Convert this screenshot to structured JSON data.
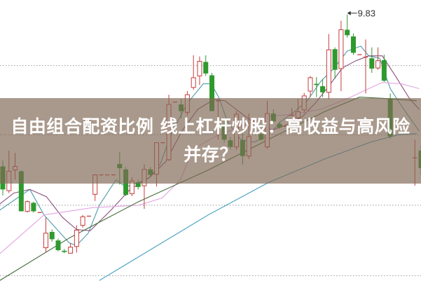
{
  "title": {
    "line1": "自由组合配资比例 线上杠杆炒股：高收益与高风险",
    "line2": "并存？"
  },
  "chart_data": {
    "type": "candlestick",
    "annotations": [
      {
        "text": "9.83",
        "day": 56,
        "price": 9.83
      }
    ],
    "colors": {
      "up": "#c83c3c",
      "down": "#2e9a2e",
      "band": "#806856",
      "grid": "#999999"
    },
    "grid": "dotted horizontal",
    "grid_prices": [
      9.41,
      8.84,
      8.26,
      7.68
    ],
    "ylim": [
      7.64,
      9.95
    ],
    "candles_ohlc": [
      [
        0,
        8.58,
        8.63,
        8.34,
        8.39
      ],
      [
        1,
        8.38,
        8.71,
        8.36,
        8.54
      ],
      [
        2,
        8.55,
        8.69,
        8.47,
        8.58
      ],
      [
        3,
        8.54,
        8.55,
        8.21,
        8.21
      ],
      [
        4,
        8.21,
        8.3,
        8.2,
        8.29
      ],
      [
        5,
        8.28,
        8.29,
        8.2,
        8.21
      ],
      [
        6,
        8.2,
        8.2,
        8.2,
        8.2
      ],
      [
        7,
        7.91,
        8.16,
        7.87,
        8.03
      ],
      [
        8,
        8.04,
        8.06,
        7.96,
        7.98
      ],
      [
        9,
        7.97,
        7.985,
        7.88,
        7.89
      ],
      [
        10,
        7.885,
        7.9,
        7.865,
        7.875
      ],
      [
        11,
        7.865,
        7.95,
        7.86,
        7.915
      ],
      [
        12,
        7.92,
        8.095,
        7.87,
        8.055
      ],
      [
        13,
        8.095,
        8.18,
        8.075,
        8.165
      ],
      [
        14,
        8.17,
        8.17,
        8.17,
        8.17
      ],
      [
        15,
        8.35,
        8.515,
        8.295,
        8.51
      ],
      [
        16,
        8.51,
        8.51,
        8.51,
        8.51
      ],
      [
        17,
        8.51,
        8.51,
        8.51,
        8.51
      ],
      [
        18,
        8.51,
        8.51,
        8.51,
        8.51
      ],
      [
        19,
        8.6,
        8.7,
        8.43,
        8.565
      ],
      [
        20,
        8.555,
        8.575,
        8.335,
        8.345
      ],
      [
        21,
        8.355,
        8.49,
        8.335,
        8.46
      ],
      [
        22,
        8.45,
        8.47,
        8.39,
        8.41
      ],
      [
        23,
        8.42,
        8.6,
        8.23,
        8.555
      ],
      [
        24,
        8.555,
        8.575,
        8.49,
        8.51
      ],
      [
        25,
        8.515,
        8.775,
        8.415,
        8.775
      ],
      [
        26,
        8.775,
        8.775,
        8.775,
        8.775
      ],
      [
        27,
        8.635,
        9.17,
        8.625,
        9.09
      ],
      [
        28,
        9.11,
        9.11,
        9.11,
        9.11
      ],
      [
        29,
        9.09,
        9.135,
        8.975,
        9.035
      ],
      [
        30,
        9.025,
        9.2,
        9.0,
        9.17
      ],
      [
        31,
        9.23,
        9.495,
        9.21,
        9.31
      ],
      [
        32,
        9.325,
        9.485,
        9.25,
        9.445
      ],
      [
        33,
        9.44,
        9.495,
        9.325,
        9.345
      ],
      [
        34,
        9.33,
        9.35,
        9.035,
        9.035
      ],
      [
        35,
        9.12,
        9.14,
        8.8,
        9.12
      ],
      [
        36,
        8.91,
        8.95,
        8.775,
        8.8
      ],
      [
        37,
        8.795,
        8.825,
        8.72,
        8.74
      ],
      [
        38,
        8.74,
        9.035,
        8.715,
        9.01
      ],
      [
        39,
        8.795,
        8.85,
        8.595,
        8.665
      ],
      [
        40,
        8.665,
        9.015,
        8.64,
        8.825
      ],
      [
        41,
        8.95,
        8.95,
        8.95,
        8.95
      ],
      [
        42,
        8.845,
        8.875,
        8.79,
        8.8
      ],
      [
        43,
        8.74,
        9.12,
        8.725,
        9.015
      ],
      [
        44,
        9.015,
        9.05,
        8.935,
        8.95
      ],
      [
        45,
        8.93,
        8.95,
        8.89,
        8.9
      ],
      [
        46,
        8.91,
        8.91,
        8.91,
        8.91
      ],
      [
        47,
        9.0,
        9.06,
        9.0,
        9.0
      ],
      [
        48,
        8.98,
        9.135,
        8.96,
        9.03
      ],
      [
        49,
        9.045,
        9.185,
        9.025,
        9.16
      ],
      [
        50,
        9.2,
        9.325,
        9.15,
        9.31
      ],
      [
        51,
        9.26,
        9.315,
        9.15,
        9.25
      ],
      [
        52,
        9.24,
        9.3,
        9.15,
        9.19
      ],
      [
        53,
        9.19,
        9.67,
        9.135,
        9.54
      ],
      [
        54,
        9.545,
        9.56,
        9.3,
        9.375
      ],
      [
        55,
        9.385,
        9.78,
        9.2,
        9.705
      ],
      [
        56,
        9.705,
        9.83,
        9.64,
        9.66
      ],
      [
        57,
        9.65,
        9.675,
        9.5,
        9.515
      ],
      [
        58,
        9.5,
        9.5,
        9.5,
        9.5
      ],
      [
        59,
        9.48,
        9.625,
        9.18,
        9.48
      ],
      [
        60,
        9.47,
        9.56,
        9.35,
        9.385
      ],
      [
        61,
        9.39,
        9.56,
        9.375,
        9.45
      ],
      [
        62,
        9.455,
        9.5,
        9.275,
        9.285
      ],
      [
        63,
        9.14,
        9.18,
        8.81,
        8.825
      ],
      [
        67,
        8.65,
        8.8,
        8.42,
        8.65
      ],
      [
        68,
        8.71,
        8.75,
        8.51,
        8.565
      ]
    ],
    "moving_averages": [
      {
        "color": "#4f9aa8",
        "points": [
          [
            -0.5,
            8.22
          ],
          [
            4.4,
            8.39
          ],
          [
            6.7,
            8.18
          ],
          [
            10.8,
            7.95
          ],
          [
            12,
            7.93
          ],
          [
            13.9,
            8.03
          ],
          [
            15.7,
            8.26
          ],
          [
            18.4,
            8.47
          ],
          [
            20,
            8.41
          ],
          [
            22.2,
            8.45
          ],
          [
            23.9,
            8.49
          ],
          [
            25.6,
            8.6
          ],
          [
            27.4,
            8.85
          ],
          [
            30,
            9.1
          ],
          [
            32.6,
            9.26
          ],
          [
            33.9,
            9.26
          ],
          [
            35.2,
            9.14
          ],
          [
            36.5,
            8.95
          ],
          [
            38.7,
            8.8
          ],
          [
            40.9,
            8.78
          ],
          [
            43,
            8.83
          ],
          [
            45.2,
            8.95
          ],
          [
            47.4,
            9.03
          ],
          [
            49.5,
            9.12
          ],
          [
            51.7,
            9.28
          ],
          [
            53.9,
            9.39
          ],
          [
            56,
            9.53
          ],
          [
            58.2,
            9.57
          ],
          [
            59.5,
            9.49
          ],
          [
            61.3,
            9.47
          ],
          [
            63,
            9.22
          ],
          [
            64.8,
            9.08
          ],
          [
            67.7,
            8.87
          ]
        ]
      },
      {
        "color": "#8a4f7e",
        "points": [
          [
            -0.5,
            8.27
          ],
          [
            1.8,
            8.36
          ],
          [
            4.4,
            8.39
          ],
          [
            7.1,
            8.33
          ],
          [
            9.7,
            8.16
          ],
          [
            12,
            8.06
          ],
          [
            14.2,
            8.05
          ],
          [
            17.6,
            8.22
          ],
          [
            20.7,
            8.39
          ],
          [
            23.9,
            8.49
          ],
          [
            26.5,
            8.62
          ],
          [
            29.1,
            8.87
          ],
          [
            31.7,
            9.05
          ],
          [
            34.3,
            9.13
          ],
          [
            36.1,
            9.12
          ],
          [
            37.4,
            9.07
          ],
          [
            39.5,
            8.99
          ],
          [
            41.7,
            8.91
          ],
          [
            43.9,
            8.88
          ],
          [
            46.5,
            8.93
          ],
          [
            48.7,
            8.99
          ],
          [
            50.8,
            9.1
          ],
          [
            53,
            9.24
          ],
          [
            55.2,
            9.39
          ],
          [
            57.4,
            9.45
          ],
          [
            59.5,
            9.49
          ],
          [
            61.7,
            9.49
          ],
          [
            63.9,
            9.32
          ],
          [
            66.1,
            9.14
          ],
          [
            67.7,
            9.05
          ]
        ]
      },
      {
        "color": "#e2a6e2",
        "points": [
          [
            -0.5,
            7.86
          ],
          [
            6.7,
            8.18
          ],
          [
            14.6,
            8.24
          ],
          [
            22.1,
            8.26
          ],
          [
            25.9,
            8.32
          ],
          [
            28.9,
            8.47
          ],
          [
            30.9,
            8.72
          ],
          [
            34.3,
            8.82
          ],
          [
            38.7,
            8.91
          ],
          [
            43,
            8.99
          ],
          [
            47.4,
            9.01
          ],
          [
            51.7,
            9.05
          ],
          [
            56.1,
            9.14
          ],
          [
            59.5,
            9.22
          ],
          [
            61.7,
            9.27
          ],
          [
            64.8,
            9.26
          ],
          [
            67.7,
            9.22
          ]
        ]
      },
      {
        "color": "#3f6a36",
        "points": [
          [
            -0.5,
            7.64
          ],
          [
            10.8,
            7.99
          ],
          [
            22.1,
            8.29
          ],
          [
            33.4,
            8.55
          ],
          [
            44.7,
            8.84
          ],
          [
            52.3,
            9.03
          ],
          [
            58,
            9.15
          ],
          [
            62,
            9.14
          ],
          [
            67.3,
            9.12
          ]
        ]
      },
      {
        "color": "#3d9cbc",
        "points": [
          [
            15.7,
            7.64
          ],
          [
            33.4,
            8.18
          ],
          [
            43.3,
            8.45
          ],
          [
            52.3,
            8.64
          ],
          [
            59.8,
            8.78
          ],
          [
            64.3,
            8.84
          ],
          [
            67.3,
            8.85
          ]
        ]
      }
    ]
  }
}
